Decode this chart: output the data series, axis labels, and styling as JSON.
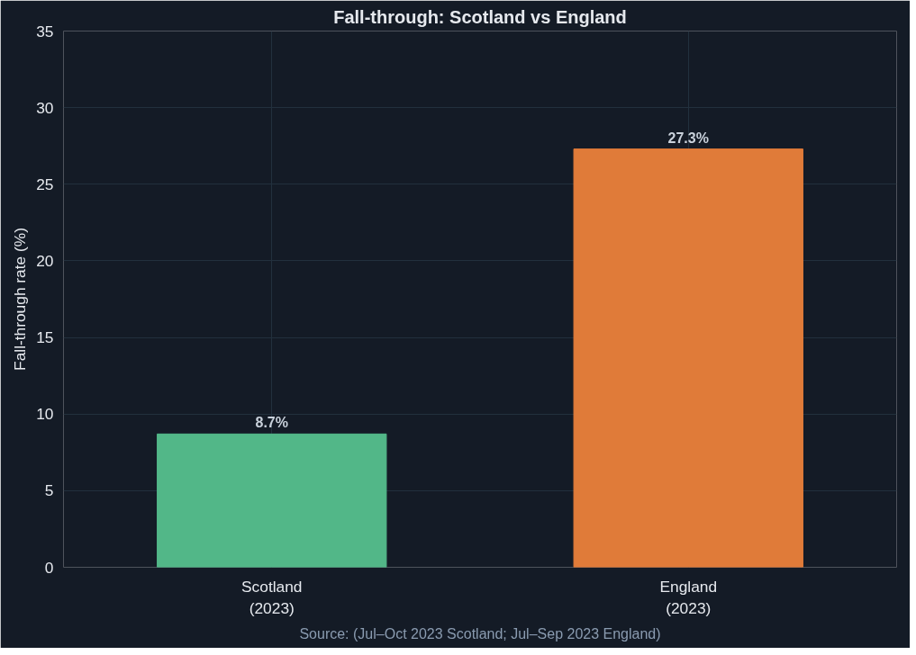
{
  "chart_data": {
    "type": "bar",
    "title": "Fall-through: Scotland vs England",
    "ylabel": "Fall-through rate (%)",
    "categories": [
      "Scotland\n(2023)",
      "England\n(2023)"
    ],
    "values": [
      8.7,
      27.3
    ],
    "colors": [
      "#52b788",
      "#e07b39"
    ],
    "value_labels": [
      "8.7%",
      "27.3%"
    ],
    "ylim": [
      0,
      35
    ],
    "yticks": [
      0,
      5,
      10,
      15,
      20,
      25,
      30,
      35
    ],
    "grid": true,
    "annotations": [
      "Source: (Jul–Oct 2023 Scotland; Jul–Sep 2023 England)"
    ]
  }
}
